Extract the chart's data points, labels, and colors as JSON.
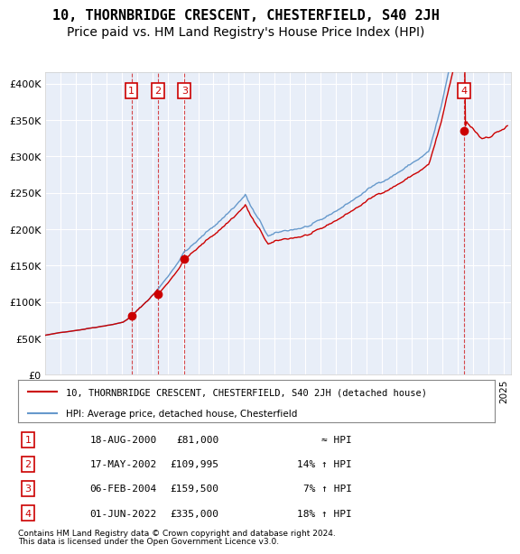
{
  "title": "10, THORNBRIDGE CRESCENT, CHESTERFIELD, S40 2JH",
  "subtitle": "Price paid vs. HM Land Registry's House Price Index (HPI)",
  "ylabel_ticks": [
    "£0",
    "£50K",
    "£100K",
    "£150K",
    "£200K",
    "£250K",
    "£300K",
    "£350K",
    "£400K"
  ],
  "ytick_values": [
    0,
    50000,
    100000,
    150000,
    200000,
    250000,
    300000,
    350000,
    400000
  ],
  "ylim": [
    0,
    415000
  ],
  "xlim_start": 1995.0,
  "xlim_end": 2025.5,
  "title_fontsize": 11,
  "subtitle_fontsize": 10,
  "legend_line1": "10, THORNBRIDGE CRESCENT, CHESTERFIELD, S40 2JH (detached house)",
  "legend_line2": "HPI: Average price, detached house, Chesterfield",
  "transactions": [
    {
      "num": 1,
      "date": "18-AUG-2000",
      "price": 81000,
      "rel": "≈ HPI",
      "year": 2000.63
    },
    {
      "num": 2,
      "date": "17-MAY-2002",
      "price": 109995,
      "rel": "14% ↑ HPI",
      "year": 2002.37
    },
    {
      "num": 3,
      "date": "06-FEB-2004",
      "price": 159500,
      "rel": "7% ↑ HPI",
      "year": 2004.1
    },
    {
      "num": 4,
      "date": "01-JUN-2022",
      "price": 335000,
      "rel": "18% ↑ HPI",
      "year": 2022.42
    }
  ],
  "footnote1": "Contains HM Land Registry data © Crown copyright and database right 2024.",
  "footnote2": "This data is licensed under the Open Government Licence v3.0.",
  "hpi_color": "#6699cc",
  "price_color": "#cc0000",
  "marker_box_color": "#cc0000",
  "bg_plot": "#e8eef8",
  "grid_color": "#ffffff",
  "legend_box_color": "#ffffff"
}
